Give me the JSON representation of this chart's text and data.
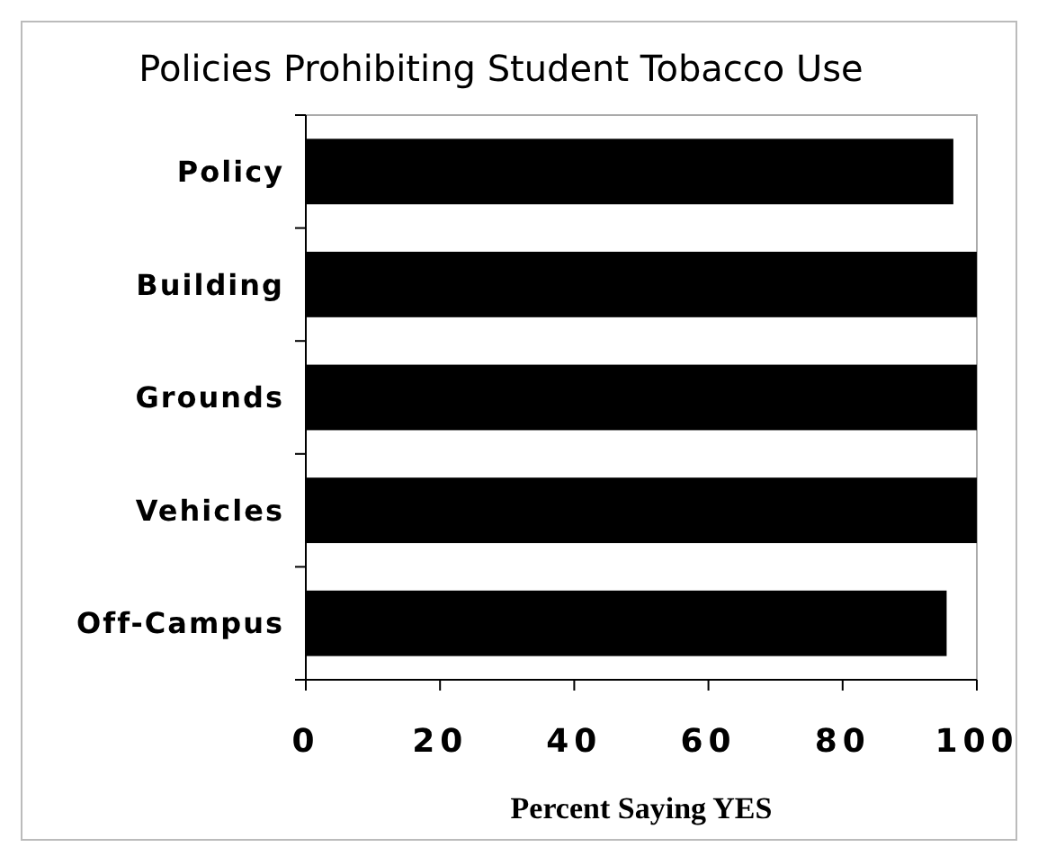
{
  "chart_data": {
    "type": "bar",
    "orientation": "horizontal",
    "title": "Policies Prohibiting Student Tobacco Use",
    "xlabel": "Percent Saying YES",
    "categories": [
      "Policy",
      "Building",
      "Grounds",
      "Vehicles",
      "Off-Campus"
    ],
    "values": [
      96.5,
      100,
      100,
      100,
      95.5
    ],
    "color": "#000000",
    "xlim": [
      0,
      100
    ],
    "xticks": [
      0,
      20,
      40,
      60,
      80,
      100
    ],
    "grid": false
  }
}
